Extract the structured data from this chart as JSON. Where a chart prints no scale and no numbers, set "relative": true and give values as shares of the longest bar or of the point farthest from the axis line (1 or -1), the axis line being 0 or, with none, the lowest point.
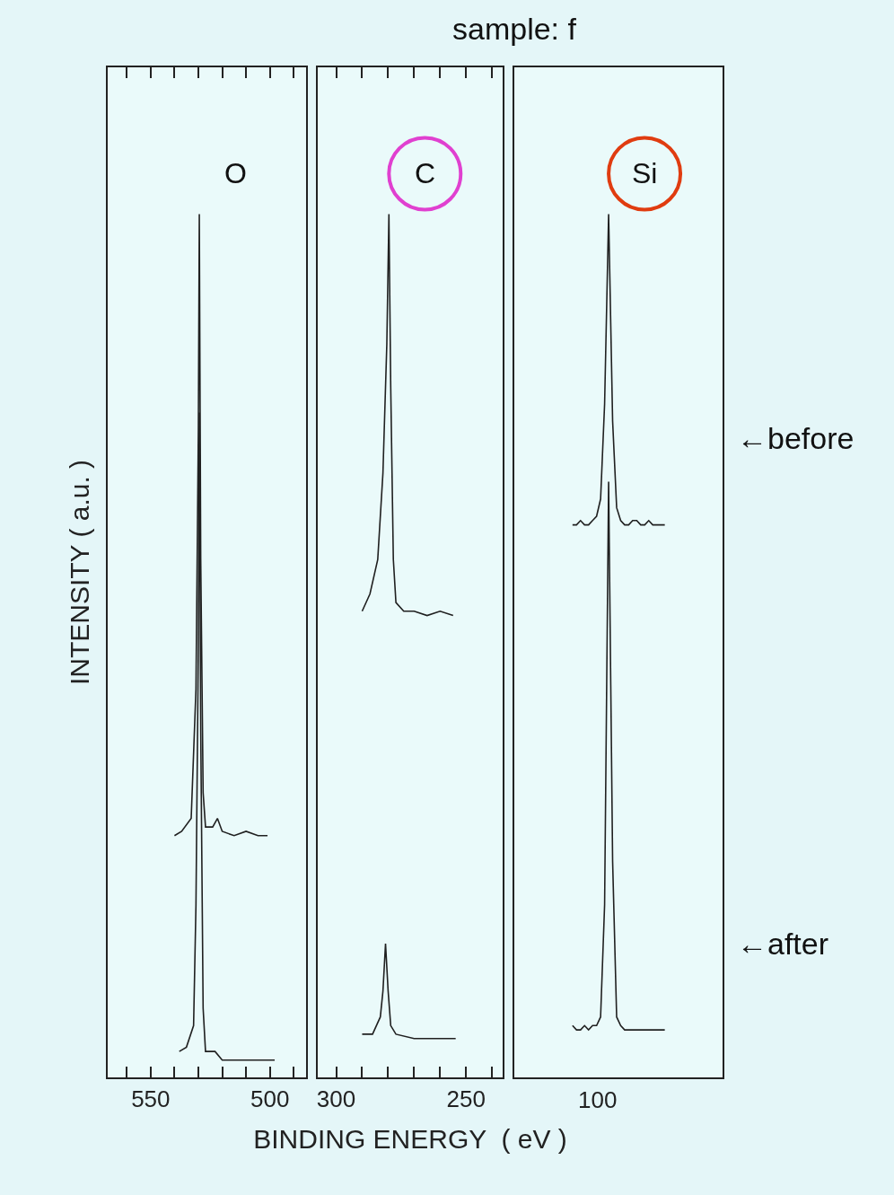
{
  "chart_data": [
    {
      "type": "line",
      "ylabel": "INTENSITY ( a.u. )",
      "relative": true,
      "legend": false,
      "grid": false,
      "marker": "none",
      "line_style": "solid",
      "tick_labels": "x",
      "xlim": [
        568,
        485
      ],
      "xticks": [
        {
          "value": 560,
          "label": null
        },
        550,
        {
          "value": 540,
          "label": null
        },
        {
          "value": 530,
          "label": null
        },
        {
          "value": 520,
          "label": null
        },
        {
          "value": 510,
          "label": null
        },
        500,
        {
          "value": 490,
          "label": null
        }
      ],
      "annotations": [
        "O"
      ],
      "series": [
        {
          "color": "#202020",
          "x": [
            540,
            537,
            533,
            531,
            530,
            529.6,
            529,
            528,
            527,
            524,
            522,
            520,
            515,
            510,
            505,
            501
          ],
          "values": [
            0.28,
            0.285,
            0.3,
            0.45,
            0.75,
            1.0,
            0.6,
            0.33,
            0.29,
            0.29,
            0.3,
            0.285,
            0.28,
            0.285,
            0.28,
            0.28
          ]
        },
        {
          "color": "#202020",
          "x": [
            538,
            535,
            532,
            531,
            530,
            529.6,
            529,
            528,
            527,
            523,
            520,
            510,
            498
          ],
          "values": [
            0.03,
            0.035,
            0.06,
            0.2,
            0.5,
            0.77,
            0.4,
            0.08,
            0.03,
            0.03,
            0.02,
            0.02,
            0.02
          ]
        }
      ]
    },
    {
      "type": "line",
      "xlabel": "BINDING ENERGY  ( eV )",
      "relative": true,
      "legend": false,
      "grid": false,
      "marker": "none",
      "line_style": "solid",
      "tick_labels": "x",
      "xlim": [
        307,
        236
      ],
      "xticks": [
        300,
        {
          "value": 290,
          "label": null
        },
        {
          "value": 280,
          "label": null
        },
        {
          "value": 270,
          "label": null
        },
        {
          "value": 260,
          "label": null
        },
        250,
        {
          "value": 240,
          "label": null
        }
      ],
      "annotations": [
        "C"
      ],
      "series": [
        {
          "color": "#202020",
          "x": [
            290,
            287,
            284,
            282,
            280.5,
            279.7,
            279,
            278,
            277,
            274,
            270,
            265,
            260,
            255
          ],
          "values": [
            0.54,
            0.56,
            0.6,
            0.7,
            0.85,
            1.0,
            0.8,
            0.6,
            0.55,
            0.54,
            0.54,
            0.535,
            0.54,
            0.535
          ]
        },
        {
          "color": "#202020",
          "x": [
            290,
            286,
            283,
            282,
            281,
            280,
            279,
            277,
            270,
            260,
            254
          ],
          "values": [
            0.05,
            0.05,
            0.07,
            0.1,
            0.155,
            0.1,
            0.06,
            0.05,
            0.045,
            0.045,
            0.045
          ]
        }
      ]
    },
    {
      "type": "line",
      "title": "sample: f",
      "relative": true,
      "legend": false,
      "grid": false,
      "marker": "none",
      "line_style": "solid",
      "tick_labels": false,
      "categories": [
        null,
        null,
        null,
        null,
        null,
        null,
        null,
        null,
        null,
        null,
        null,
        null,
        null,
        null,
        null,
        null,
        null,
        null,
        null,
        null,
        null,
        null,
        null,
        null
      ],
      "annotations": [
        "Si",
        "100"
      ],
      "series": [
        {
          "name": "←before",
          "color": "#202020",
          "values": [
            0.64,
            0.64,
            0.645,
            0.64,
            0.64,
            0.645,
            0.65,
            0.67,
            0.78,
            1.0,
            0.76,
            0.66,
            0.645,
            0.64,
            0.64,
            0.645,
            0.645,
            0.64,
            0.64,
            0.645,
            0.64,
            0.64,
            0.64,
            0.64
          ]
        },
        {
          "name": "←after",
          "color": "#202020",
          "values": [
            0.06,
            0.055,
            0.055,
            0.06,
            0.055,
            0.06,
            0.06,
            0.07,
            0.2,
            0.69,
            0.25,
            0.07,
            0.06,
            0.055,
            0.055,
            0.055,
            0.055,
            0.055,
            0.055,
            0.055,
            0.055,
            0.055,
            0.055,
            0.055
          ]
        }
      ]
    }
  ]
}
